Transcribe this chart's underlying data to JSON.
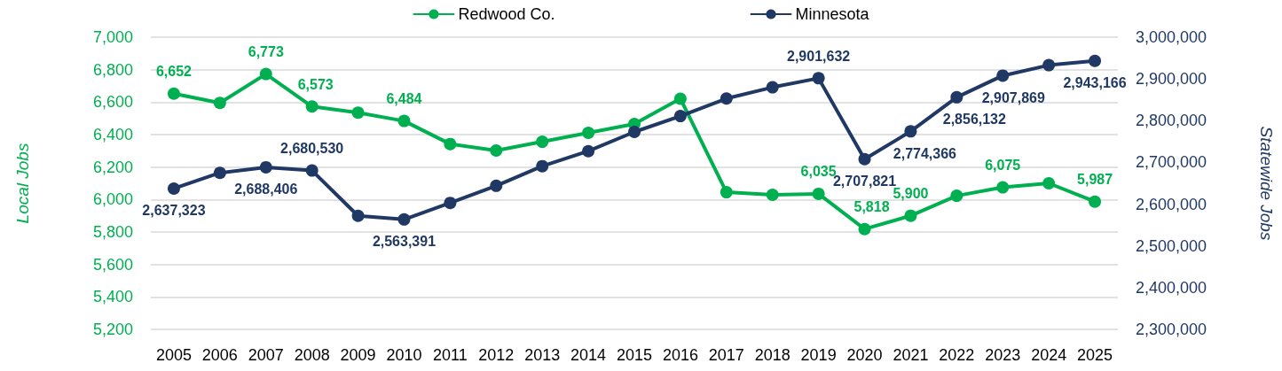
{
  "chart_data": {
    "type": "line",
    "categories": [
      "2005",
      "2006",
      "2007",
      "2008",
      "2009",
      "2010",
      "2011",
      "2012",
      "2013",
      "2014",
      "2015",
      "2016",
      "2017",
      "2018",
      "2019",
      "2020",
      "2021",
      "2022",
      "2023",
      "2024",
      "2025"
    ],
    "ylabel": "Local Jobs",
    "y2label": "Statewide Jobs",
    "ylim": [
      5200,
      7000
    ],
    "yticks": [
      {
        "value": 5200,
        "label": "5,200"
      },
      {
        "value": 5400,
        "label": "5,400"
      },
      {
        "value": 5600,
        "label": "5,600"
      },
      {
        "value": 5800,
        "label": "5,800"
      },
      {
        "value": 6000,
        "label": "6,000"
      },
      {
        "value": 6200,
        "label": "6,200"
      },
      {
        "value": 6400,
        "label": "6,400"
      },
      {
        "value": 6600,
        "label": "6,600"
      },
      {
        "value": 6800,
        "label": "6,800"
      },
      {
        "value": 7000,
        "label": "7,000"
      }
    ],
    "y2lim": [
      2300000,
      3000000
    ],
    "y2ticks": [
      {
        "value": 2300000,
        "label": "2,300,000"
      },
      {
        "value": 2400000,
        "label": "2,400,000"
      },
      {
        "value": 2500000,
        "label": "2,500,000"
      },
      {
        "value": 2600000,
        "label": "2,600,000"
      },
      {
        "value": 2700000,
        "label": "2,700,000"
      },
      {
        "value": 2800000,
        "label": "2,800,000"
      },
      {
        "value": 2900000,
        "label": "2,900,000"
      },
      {
        "value": 3000000,
        "label": "3,000,000"
      }
    ],
    "grid": "y",
    "legend": "top",
    "marker": "circle",
    "line_style": "solid",
    "series": [
      {
        "name": "Redwood Co.",
        "color": "#00b050",
        "values": [
          6652,
          6595,
          6773,
          6573,
          6535,
          6484,
          6342,
          6302,
          6356,
          6411,
          6465,
          6621,
          6045,
          6029,
          6035,
          5818,
          5900,
          6023,
          6075,
          6100,
          5987
        ],
        "value_labels": [
          "6,652",
          null,
          "6,773",
          "6,573",
          null,
          "6,484",
          null,
          null,
          null,
          null,
          null,
          null,
          null,
          null,
          "6,035",
          "5,818",
          "5,900",
          null,
          "6,075",
          null,
          "5,987"
        ]
      },
      {
        "name": "Minnesota",
        "color": "#203864",
        "axis": "y2",
        "values": [
          2637323,
          2675000,
          2688406,
          2680530,
          2572000,
          2563391,
          2603000,
          2644000,
          2691000,
          2727000,
          2773000,
          2811000,
          2853000,
          2880000,
          2901632,
          2707821,
          2774366,
          2856132,
          2907869,
          2933000,
          2943166
        ],
        "value_labels": [
          "2,637,323",
          null,
          "2,688,406",
          "2,680,530",
          null,
          "2,563,391",
          null,
          null,
          null,
          null,
          null,
          null,
          null,
          null,
          "2,901,632",
          "2,707,821",
          "2,774,366",
          "2,856,132",
          "2,907,869",
          null,
          "2,943,166"
        ]
      }
    ]
  }
}
